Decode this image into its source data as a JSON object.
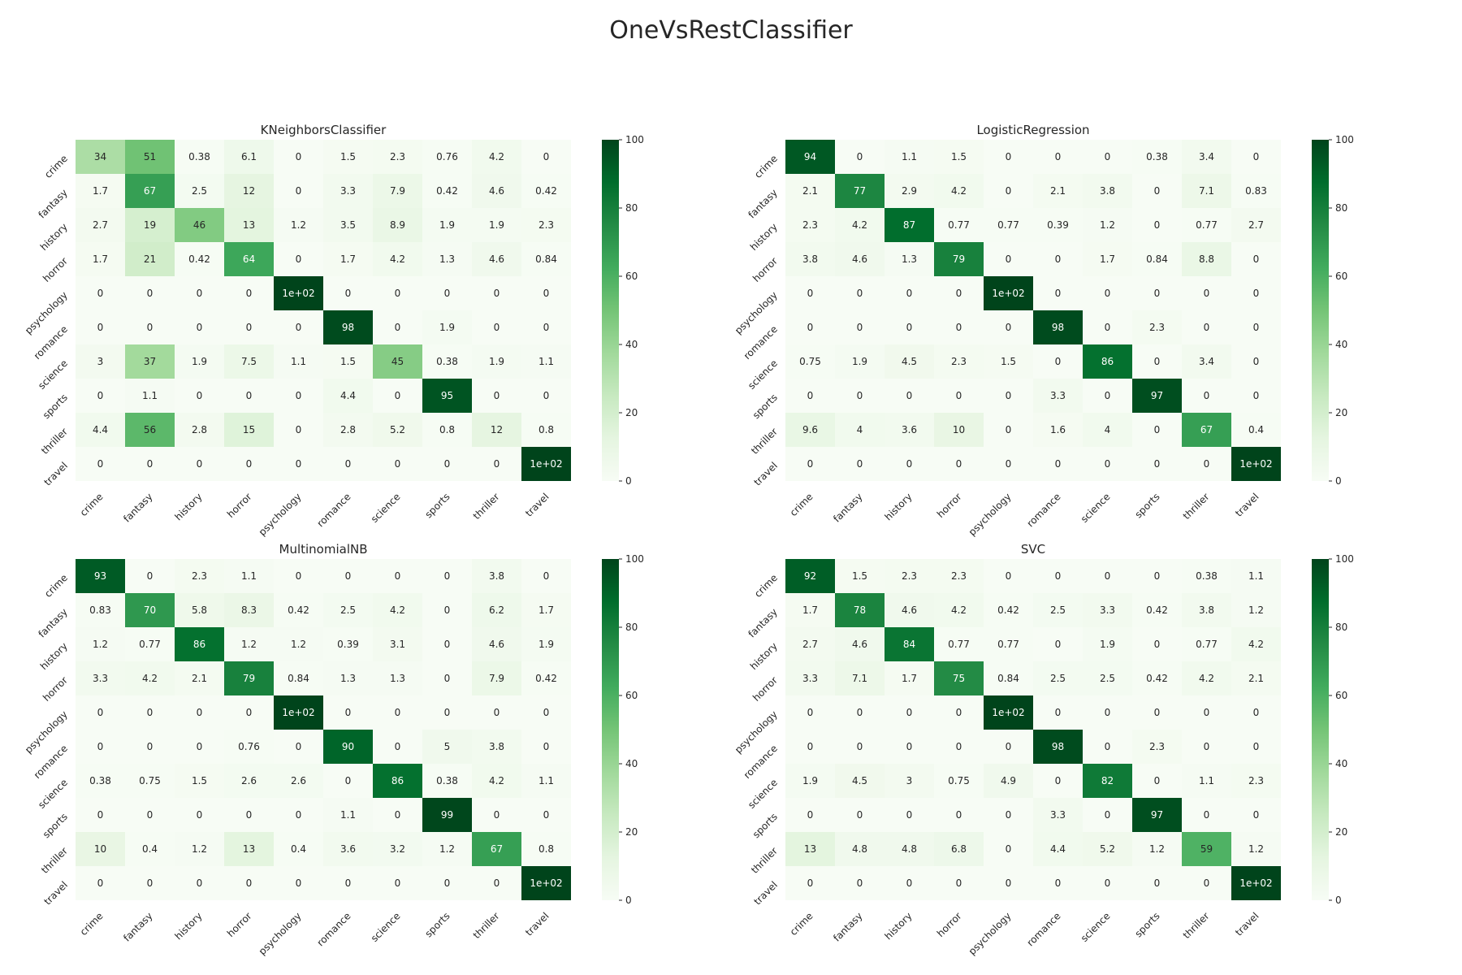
{
  "figure_title": "OneVsRestClassifier",
  "chart_data": [
    {
      "type": "heatmap",
      "title": "KNeighborsClassifier",
      "x_labels": [
        "crime",
        "fantasy",
        "history",
        "horror",
        "psychology",
        "romance",
        "science",
        "sports",
        "thriller",
        "travel"
      ],
      "y_labels": [
        "crime",
        "fantasy",
        "history",
        "horror",
        "psychology",
        "romance",
        "science",
        "sports",
        "thriller",
        "travel"
      ],
      "vmin": 0,
      "vmax": 100,
      "colormap": "Greens",
      "colorbar_ticks": [
        0,
        20,
        40,
        60,
        80,
        100
      ],
      "values": [
        [
          34,
          51,
          0.38,
          6.1,
          0,
          1.5,
          2.3,
          0.76,
          4.2,
          0
        ],
        [
          1.7,
          67,
          2.5,
          12,
          0,
          3.3,
          7.9,
          0.42,
          4.6,
          0.42
        ],
        [
          2.7,
          19,
          46,
          13,
          1.2,
          3.5,
          8.9,
          1.9,
          1.9,
          2.3
        ],
        [
          1.7,
          21,
          0.42,
          64,
          0,
          1.7,
          4.2,
          1.3,
          4.6,
          0.84
        ],
        [
          0,
          0,
          0,
          0,
          100,
          0,
          0,
          0,
          0,
          0
        ],
        [
          0,
          0,
          0,
          0,
          0,
          98,
          0,
          1.9,
          0,
          0
        ],
        [
          3,
          37,
          1.9,
          7.5,
          1.1,
          1.5,
          45,
          0.38,
          1.9,
          1.1
        ],
        [
          0,
          1.1,
          0,
          0,
          0,
          4.4,
          0,
          95,
          0,
          0
        ],
        [
          4.4,
          56,
          2.8,
          15,
          0,
          2.8,
          5.2,
          0.8,
          12,
          0.8
        ],
        [
          0,
          0,
          0,
          0,
          0,
          0,
          0,
          0,
          0,
          100
        ]
      ],
      "labels": [
        [
          "34",
          "51",
          "0.38",
          "6.1",
          "0",
          "1.5",
          "2.3",
          "0.76",
          "4.2",
          "0"
        ],
        [
          "1.7",
          "67",
          "2.5",
          "12",
          "0",
          "3.3",
          "7.9",
          "0.42",
          "4.6",
          "0.42"
        ],
        [
          "2.7",
          "19",
          "46",
          "13",
          "1.2",
          "3.5",
          "8.9",
          "1.9",
          "1.9",
          "2.3"
        ],
        [
          "1.7",
          "21",
          "0.42",
          "64",
          "0",
          "1.7",
          "4.2",
          "1.3",
          "4.6",
          "0.84"
        ],
        [
          "0",
          "0",
          "0",
          "0",
          "1e+02",
          "0",
          "0",
          "0",
          "0",
          "0"
        ],
        [
          "0",
          "0",
          "0",
          "0",
          "0",
          "98",
          "0",
          "1.9",
          "0",
          "0"
        ],
        [
          "3",
          "37",
          "1.9",
          "7.5",
          "1.1",
          "1.5",
          "45",
          "0.38",
          "1.9",
          "1.1"
        ],
        [
          "0",
          "1.1",
          "0",
          "0",
          "0",
          "4.4",
          "0",
          "95",
          "0",
          "0"
        ],
        [
          "4.4",
          "56",
          "2.8",
          "15",
          "0",
          "2.8",
          "5.2",
          "0.8",
          "12",
          "0.8"
        ],
        [
          "0",
          "0",
          "0",
          "0",
          "0",
          "0",
          "0",
          "0",
          "0",
          "1e+02"
        ]
      ]
    },
    {
      "type": "heatmap",
      "title": "LogisticRegression",
      "x_labels": [
        "crime",
        "fantasy",
        "history",
        "horror",
        "psychology",
        "romance",
        "science",
        "sports",
        "thriller",
        "travel"
      ],
      "y_labels": [
        "crime",
        "fantasy",
        "history",
        "horror",
        "psychology",
        "romance",
        "science",
        "sports",
        "thriller",
        "travel"
      ],
      "vmin": 0,
      "vmax": 100,
      "colormap": "Greens",
      "colorbar_ticks": [
        0,
        20,
        40,
        60,
        80,
        100
      ],
      "values": [
        [
          94,
          0,
          1.1,
          1.5,
          0,
          0,
          0,
          0.38,
          3.4,
          0
        ],
        [
          2.1,
          77,
          2.9,
          4.2,
          0,
          2.1,
          3.8,
          0,
          7.1,
          0.83
        ],
        [
          2.3,
          4.2,
          87,
          0.77,
          0.77,
          0.39,
          1.2,
          0,
          0.77,
          2.7
        ],
        [
          3.8,
          4.6,
          1.3,
          79,
          0,
          0,
          1.7,
          0.84,
          8.8,
          0
        ],
        [
          0,
          0,
          0,
          0,
          100,
          0,
          0,
          0,
          0,
          0
        ],
        [
          0,
          0,
          0,
          0,
          0,
          98,
          0,
          2.3,
          0,
          0
        ],
        [
          0.75,
          1.9,
          4.5,
          2.3,
          1.5,
          0,
          86,
          0,
          3.4,
          0
        ],
        [
          0,
          0,
          0,
          0,
          0,
          3.3,
          0,
          97,
          0,
          0
        ],
        [
          9.6,
          4,
          3.6,
          10,
          0,
          1.6,
          4,
          0,
          67,
          0.4
        ],
        [
          0,
          0,
          0,
          0,
          0,
          0,
          0,
          0,
          0,
          100
        ]
      ],
      "labels": [
        [
          "94",
          "0",
          "1.1",
          "1.5",
          "0",
          "0",
          "0",
          "0.38",
          "3.4",
          "0"
        ],
        [
          "2.1",
          "77",
          "2.9",
          "4.2",
          "0",
          "2.1",
          "3.8",
          "0",
          "7.1",
          "0.83"
        ],
        [
          "2.3",
          "4.2",
          "87",
          "0.77",
          "0.77",
          "0.39",
          "1.2",
          "0",
          "0.77",
          "2.7"
        ],
        [
          "3.8",
          "4.6",
          "1.3",
          "79",
          "0",
          "0",
          "1.7",
          "0.84",
          "8.8",
          "0"
        ],
        [
          "0",
          "0",
          "0",
          "0",
          "1e+02",
          "0",
          "0",
          "0",
          "0",
          "0"
        ],
        [
          "0",
          "0",
          "0",
          "0",
          "0",
          "98",
          "0",
          "2.3",
          "0",
          "0"
        ],
        [
          "0.75",
          "1.9",
          "4.5",
          "2.3",
          "1.5",
          "0",
          "86",
          "0",
          "3.4",
          "0"
        ],
        [
          "0",
          "0",
          "0",
          "0",
          "0",
          "3.3",
          "0",
          "97",
          "0",
          "0"
        ],
        [
          "9.6",
          "4",
          "3.6",
          "10",
          "0",
          "1.6",
          "4",
          "0",
          "67",
          "0.4"
        ],
        [
          "0",
          "0",
          "0",
          "0",
          "0",
          "0",
          "0",
          "0",
          "0",
          "1e+02"
        ]
      ]
    },
    {
      "type": "heatmap",
      "title": "MultinomialNB",
      "x_labels": [
        "crime",
        "fantasy",
        "history",
        "horror",
        "psychology",
        "romance",
        "science",
        "sports",
        "thriller",
        "travel"
      ],
      "y_labels": [
        "crime",
        "fantasy",
        "history",
        "horror",
        "psychology",
        "romance",
        "science",
        "sports",
        "thriller",
        "travel"
      ],
      "vmin": 0,
      "vmax": 100,
      "colormap": "Greens",
      "colorbar_ticks": [
        0,
        20,
        40,
        60,
        80,
        100
      ],
      "values": [
        [
          93,
          0,
          2.3,
          1.1,
          0,
          0,
          0,
          0,
          3.8,
          0
        ],
        [
          0.83,
          70,
          5.8,
          8.3,
          0.42,
          2.5,
          4.2,
          0,
          6.2,
          1.7
        ],
        [
          1.2,
          0.77,
          86,
          1.2,
          1.2,
          0.39,
          3.1,
          0,
          4.6,
          1.9
        ],
        [
          3.3,
          4.2,
          2.1,
          79,
          0.84,
          1.3,
          1.3,
          0,
          7.9,
          0.42
        ],
        [
          0,
          0,
          0,
          0,
          100,
          0,
          0,
          0,
          0,
          0
        ],
        [
          0,
          0,
          0,
          0.76,
          0,
          90,
          0,
          5,
          3.8,
          0
        ],
        [
          0.38,
          0.75,
          1.5,
          2.6,
          2.6,
          0,
          86,
          0.38,
          4.2,
          1.1
        ],
        [
          0,
          0,
          0,
          0,
          0,
          1.1,
          0,
          99,
          0,
          0
        ],
        [
          10,
          0.4,
          1.2,
          13,
          0.4,
          3.6,
          3.2,
          1.2,
          67,
          0.8
        ],
        [
          0,
          0,
          0,
          0,
          0,
          0,
          0,
          0,
          0,
          100
        ]
      ],
      "labels": [
        [
          "93",
          "0",
          "2.3",
          "1.1",
          "0",
          "0",
          "0",
          "0",
          "3.8",
          "0"
        ],
        [
          "0.83",
          "70",
          "5.8",
          "8.3",
          "0.42",
          "2.5",
          "4.2",
          "0",
          "6.2",
          "1.7"
        ],
        [
          "1.2",
          "0.77",
          "86",
          "1.2",
          "1.2",
          "0.39",
          "3.1",
          "0",
          "4.6",
          "1.9"
        ],
        [
          "3.3",
          "4.2",
          "2.1",
          "79",
          "0.84",
          "1.3",
          "1.3",
          "0",
          "7.9",
          "0.42"
        ],
        [
          "0",
          "0",
          "0",
          "0",
          "1e+02",
          "0",
          "0",
          "0",
          "0",
          "0"
        ],
        [
          "0",
          "0",
          "0",
          "0.76",
          "0",
          "90",
          "0",
          "5",
          "3.8",
          "0"
        ],
        [
          "0.38",
          "0.75",
          "1.5",
          "2.6",
          "2.6",
          "0",
          "86",
          "0.38",
          "4.2",
          "1.1"
        ],
        [
          "0",
          "0",
          "0",
          "0",
          "0",
          "1.1",
          "0",
          "99",
          "0",
          "0"
        ],
        [
          "10",
          "0.4",
          "1.2",
          "13",
          "0.4",
          "3.6",
          "3.2",
          "1.2",
          "67",
          "0.8"
        ],
        [
          "0",
          "0",
          "0",
          "0",
          "0",
          "0",
          "0",
          "0",
          "0",
          "1e+02"
        ]
      ]
    },
    {
      "type": "heatmap",
      "title": "SVC",
      "x_labels": [
        "crime",
        "fantasy",
        "history",
        "horror",
        "psychology",
        "romance",
        "science",
        "sports",
        "thriller",
        "travel"
      ],
      "y_labels": [
        "crime",
        "fantasy",
        "history",
        "horror",
        "psychology",
        "romance",
        "science",
        "sports",
        "thriller",
        "travel"
      ],
      "vmin": 0,
      "vmax": 100,
      "colormap": "Greens",
      "colorbar_ticks": [
        0,
        20,
        40,
        60,
        80,
        100
      ],
      "values": [
        [
          92,
          1.5,
          2.3,
          2.3,
          0,
          0,
          0,
          0,
          0.38,
          1.1
        ],
        [
          1.7,
          78,
          4.6,
          4.2,
          0.42,
          2.5,
          3.3,
          0.42,
          3.8,
          1.2
        ],
        [
          2.7,
          4.6,
          84,
          0.77,
          0.77,
          0,
          1.9,
          0,
          0.77,
          4.2
        ],
        [
          3.3,
          7.1,
          1.7,
          75,
          0.84,
          2.5,
          2.5,
          0.42,
          4.2,
          2.1
        ],
        [
          0,
          0,
          0,
          0,
          100,
          0,
          0,
          0,
          0,
          0
        ],
        [
          0,
          0,
          0,
          0,
          0,
          98,
          0,
          2.3,
          0,
          0
        ],
        [
          1.9,
          4.5,
          3,
          0.75,
          4.9,
          0,
          82,
          0,
          1.1,
          2.3
        ],
        [
          0,
          0,
          0,
          0,
          0,
          3.3,
          0,
          97,
          0,
          0
        ],
        [
          13,
          4.8,
          4.8,
          6.8,
          0,
          4.4,
          5.2,
          1.2,
          59,
          1.2
        ],
        [
          0,
          0,
          0,
          0,
          0,
          0,
          0,
          0,
          0,
          100
        ]
      ],
      "labels": [
        [
          "92",
          "1.5",
          "2.3",
          "2.3",
          "0",
          "0",
          "0",
          "0",
          "0.38",
          "1.1"
        ],
        [
          "1.7",
          "78",
          "4.6",
          "4.2",
          "0.42",
          "2.5",
          "3.3",
          "0.42",
          "3.8",
          "1.2"
        ],
        [
          "2.7",
          "4.6",
          "84",
          "0.77",
          "0.77",
          "0",
          "1.9",
          "0",
          "0.77",
          "4.2"
        ],
        [
          "3.3",
          "7.1",
          "1.7",
          "75",
          "0.84",
          "2.5",
          "2.5",
          "0.42",
          "4.2",
          "2.1"
        ],
        [
          "0",
          "0",
          "0",
          "0",
          "1e+02",
          "0",
          "0",
          "0",
          "0",
          "0"
        ],
        [
          "0",
          "0",
          "0",
          "0",
          "0",
          "98",
          "0",
          "2.3",
          "0",
          "0"
        ],
        [
          "1.9",
          "4.5",
          "3",
          "0.75",
          "4.9",
          "0",
          "82",
          "0",
          "1.1",
          "2.3"
        ],
        [
          "0",
          "0",
          "0",
          "0",
          "0",
          "3.3",
          "0",
          "97",
          "0",
          "0"
        ],
        [
          "13",
          "4.8",
          "4.8",
          "6.8",
          "0",
          "4.4",
          "5.2",
          "1.2",
          "59",
          "1.2"
        ],
        [
          "0",
          "0",
          "0",
          "0",
          "0",
          "0",
          "0",
          "0",
          "0",
          "1e+02"
        ]
      ]
    }
  ]
}
